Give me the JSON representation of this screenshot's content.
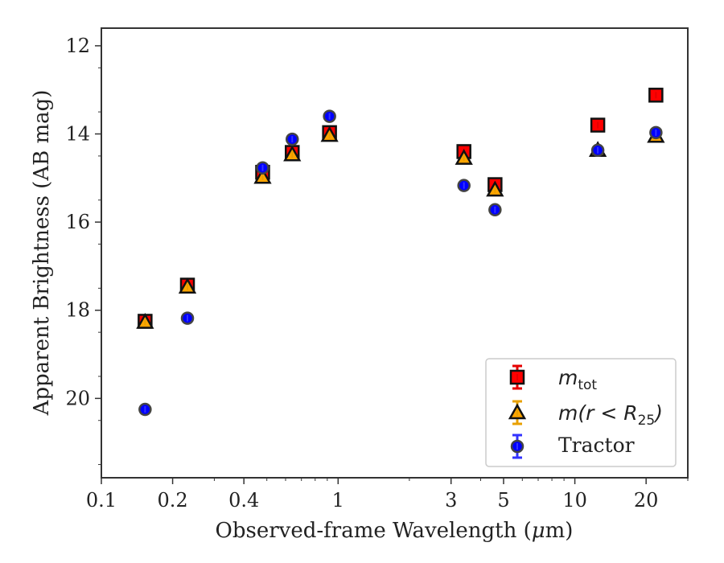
{
  "chart_data": {
    "type": "scatter",
    "xlabel_prefix": "Observed-frame Wavelength (",
    "xlabel_unit_mu": "μ",
    "xlabel_unit_rest": "m)",
    "ylabel": "Apparent Brightness (AB mag)",
    "x_scale": "log",
    "y_inverted": true,
    "xlim": [
      0.1,
      30
    ],
    "ylim": [
      21.8,
      11.6
    ],
    "x_ticks": [
      0.1,
      0.2,
      0.4,
      1,
      3,
      5,
      10,
      20
    ],
    "x_tick_labels": [
      "0.1",
      "0.2",
      "0.4",
      "1",
      "3",
      "5",
      "10",
      "20"
    ],
    "y_ticks": [
      12,
      14,
      16,
      18,
      20
    ],
    "y_tick_labels": [
      "12",
      "14",
      "16",
      "18",
      "20"
    ],
    "grid": false,
    "legend_position": "lower-right",
    "series": [
      {
        "id": "mtot",
        "legend_main": "m",
        "legend_sub": "tot",
        "marker": "square",
        "color": "#ff0000",
        "errorbar_color": "#e50000",
        "x": [
          0.153,
          0.231,
          0.48,
          0.64,
          0.92,
          3.4,
          4.6,
          12.5,
          22.0
        ],
        "y": [
          18.25,
          17.43,
          14.87,
          14.42,
          13.97,
          14.4,
          15.15,
          13.8,
          13.12
        ]
      },
      {
        "id": "mr25",
        "legend_main": "m",
        "legend_paren": "(r < R",
        "legend_sub": "25",
        "legend_close": ")",
        "marker": "triangle",
        "color": "#ffa500",
        "errorbar_color": "#e8a000",
        "x": [
          0.153,
          0.231,
          0.48,
          0.64,
          0.92,
          3.4,
          4.6,
          12.5,
          22.0
        ],
        "y": [
          18.27,
          17.47,
          14.98,
          14.47,
          14.03,
          14.55,
          15.27,
          14.37,
          14.05
        ]
      },
      {
        "id": "tractor",
        "legend_main": "Tractor",
        "marker": "circle",
        "color": "#0000ff",
        "errorbar_color": "#3333ff",
        "x": [
          0.153,
          0.231,
          0.48,
          0.64,
          0.92,
          3.4,
          4.6,
          12.5,
          22.0
        ],
        "y": [
          20.25,
          18.18,
          14.77,
          14.12,
          13.6,
          15.17,
          15.72,
          14.37,
          13.97
        ]
      }
    ]
  }
}
